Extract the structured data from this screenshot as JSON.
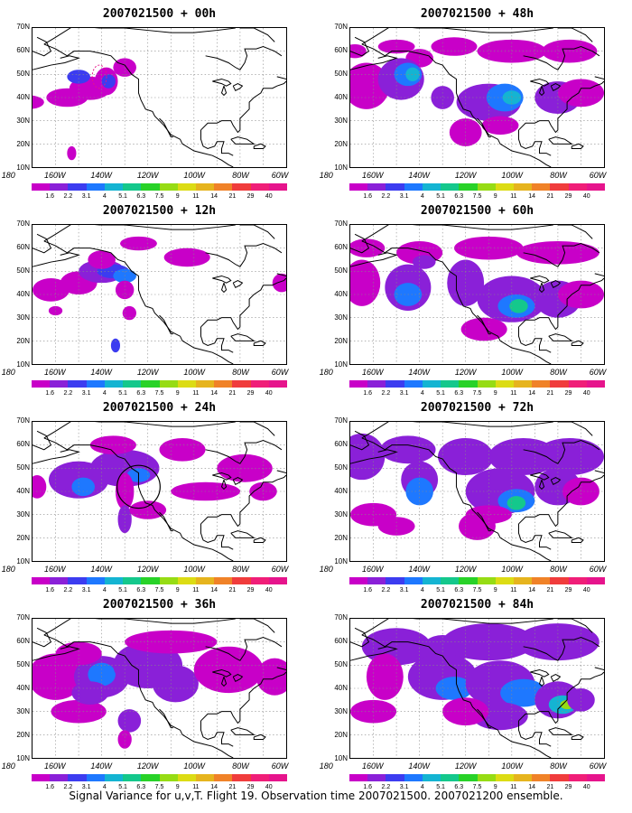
{
  "panels": [
    {
      "title": "2007021500 + 00h"
    },
    {
      "title": "2007021500 + 48h"
    },
    {
      "title": "2007021500 + 12h"
    },
    {
      "title": "2007021500 + 60h"
    },
    {
      "title": "2007021500 + 24h"
    },
    {
      "title": "2007021500 + 72h"
    },
    {
      "title": "2007021500 + 36h"
    },
    {
      "title": "2007021500 + 84h"
    }
  ],
  "lat_labels": [
    "70N",
    "60N",
    "50N",
    "40N",
    "30N",
    "20N",
    "10N"
  ],
  "lon_labels": [
    "180",
    "160W",
    "140W",
    "120W",
    "100W",
    "80W",
    "60W"
  ],
  "colorbar": {
    "labels": [
      "1.6",
      "2.2",
      "3.1",
      "4",
      "5.1",
      "6.3",
      "7.5",
      "9",
      "11",
      "14",
      "21",
      "29",
      "40"
    ],
    "colors": [
      "#c800c8",
      "#8a20d8",
      "#3c3cf0",
      "#1e78ff",
      "#14b4d2",
      "#14c88c",
      "#28d228",
      "#96dc14",
      "#dcdc14",
      "#e6b41e",
      "#f08228",
      "#f03c3c",
      "#f01e78",
      "#e6148c"
    ]
  },
  "footer": "Signal Variance for u,v,T. Flight 19. Observation time 2007021500. 2007021200 ensemble."
}
